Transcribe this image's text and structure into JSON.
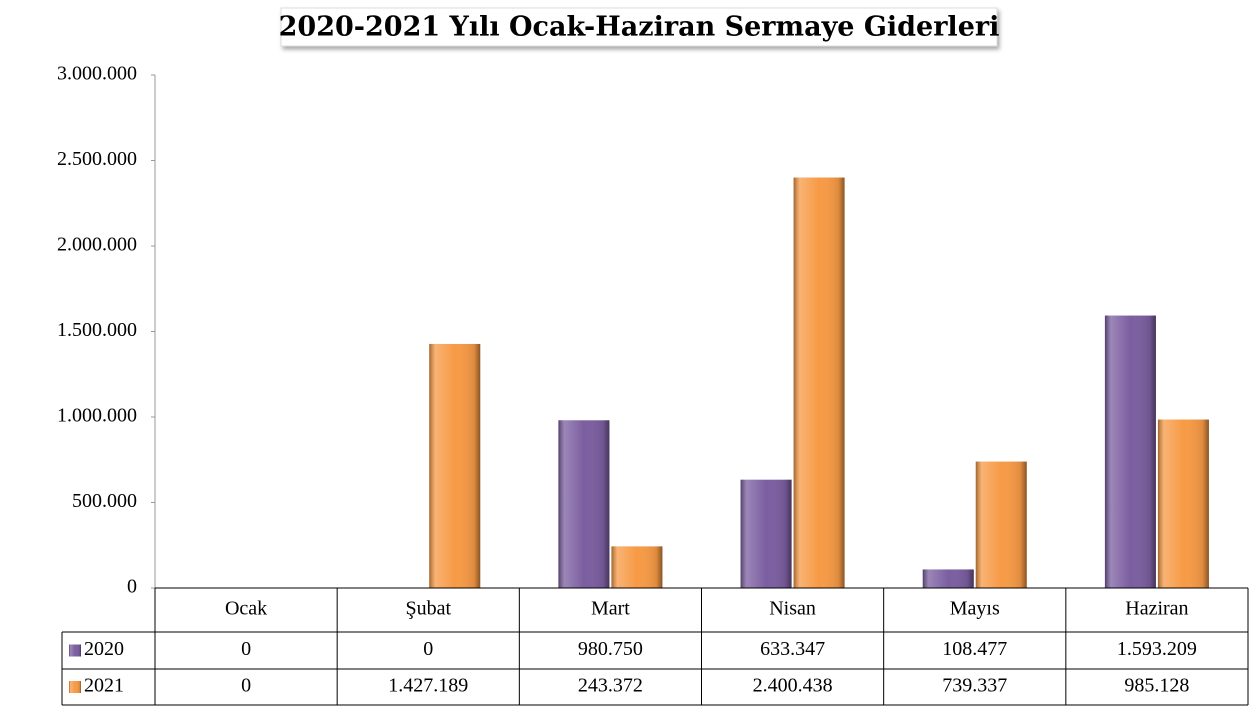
{
  "chart_data": {
    "type": "bar",
    "title": "2020-2021 Yılı Ocak-Haziran Sermaye Giderleri",
    "categories": [
      "Ocak",
      "Şubat",
      "Mart",
      "Nisan",
      "Mayıs",
      "Haziran"
    ],
    "series": [
      {
        "name": "2020",
        "color": "#7b5ea0",
        "values": [
          0,
          0,
          980750,
          633347,
          108477,
          1593209
        ],
        "value_labels": [
          "0",
          "0",
          "980.750",
          "633.347",
          "108.477",
          "1.593.209"
        ]
      },
      {
        "name": "2021",
        "color": "#f79a45",
        "values": [
          0,
          1427189,
          243372,
          2400438,
          739337,
          985128
        ],
        "value_labels": [
          "0",
          "1.427.189",
          "243.372",
          "2.400.438",
          "739.337",
          "985.128"
        ]
      }
    ],
    "ylim": [
      0,
      3000000
    ],
    "yticks": [
      0,
      {
        "value": 500000,
        "label": "500.000"
      },
      {
        "value": 1000000,
        "label": "1.000.000"
      },
      {
        "value": 1500000,
        "label": "1.500.000"
      },
      {
        "value": 2000000,
        "label": "2.000.000"
      },
      {
        "value": 2500000,
        "label": "2.500.000"
      },
      {
        "value": 3000000,
        "label": "3.000.000"
      }
    ],
    "data_table": true
  }
}
